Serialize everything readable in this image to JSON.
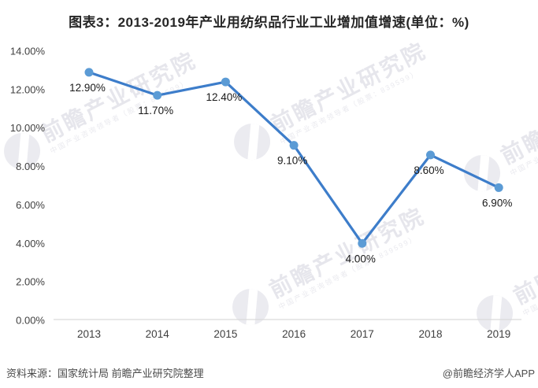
{
  "title": "图表3：2013-2019年产业用纺织品行业工业增加值增速(单位：%)",
  "chart_data": {
    "type": "line",
    "title": "图表3：2013-2019年产业用纺织品行业工业增加值增速(单位：%)",
    "unit": "%",
    "categories": [
      "2013",
      "2014",
      "2015",
      "2016",
      "2017",
      "2018",
      "2019"
    ],
    "values": [
      12.9,
      11.7,
      12.4,
      9.1,
      4.0,
      8.6,
      6.9
    ],
    "data_labels": [
      "12.90%",
      "11.70%",
      "12.40%",
      "9.10%",
      "4.00%",
      "8.60%",
      "6.90%"
    ],
    "y_ticks": [
      {
        "label": "0.00%",
        "value": 0
      },
      {
        "label": "2.00%",
        "value": 2
      },
      {
        "label": "4.00%",
        "value": 4
      },
      {
        "label": "6.00%",
        "value": 6
      },
      {
        "label": "8.00%",
        "value": 8
      },
      {
        "label": "10.00%",
        "value": 10
      },
      {
        "label": "12.00%",
        "value": 12
      },
      {
        "label": "14.00%",
        "value": 14
      }
    ],
    "ylim": [
      0,
      14
    ],
    "grid": false,
    "legend": "none",
    "line_color": "#3d7dca",
    "marker_color": "#5b9bd5",
    "axis_color": "#d9d9d9",
    "tick_text_color": "#404040",
    "data_label_color": "#1a1a1a"
  },
  "watermark": {
    "big_text": "前瞻产业研究院",
    "small_text": "中国产业咨询领导者（股票：839599）"
  },
  "footer": {
    "source": "资料来源：国家统计局 前瞻产业研究院整理",
    "credit": "@前瞻经济学人APP"
  }
}
